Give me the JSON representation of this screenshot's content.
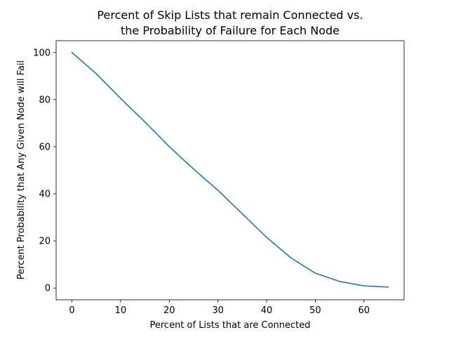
{
  "chart_data": {
    "type": "line",
    "title": {
      "line1": "Percent of Skip Lists that remain Connected vs.",
      "line2": "the Probability of Failure for Each Node"
    },
    "xlabel": "Percent of Lists that are Connected",
    "ylabel": "Percent Probability that Any Given Node will Fail",
    "xlim": [
      -3.25,
      68.25
    ],
    "ylim": [
      -5,
      105
    ],
    "xticks": [
      0,
      10,
      20,
      30,
      40,
      50,
      60
    ],
    "yticks": [
      0,
      20,
      40,
      60,
      80,
      100
    ],
    "grid": false,
    "series": [
      {
        "color": "#1f77b4",
        "x": [
          0,
          5,
          10,
          15,
          20,
          25,
          30,
          35,
          40,
          45,
          50,
          55,
          60,
          65
        ],
        "y": [
          100,
          91,
          80.5,
          70.5,
          60,
          50.5,
          41.5,
          31.5,
          21.5,
          12.8,
          6.3,
          2.8,
          0.9,
          0.4
        ]
      }
    ]
  }
}
